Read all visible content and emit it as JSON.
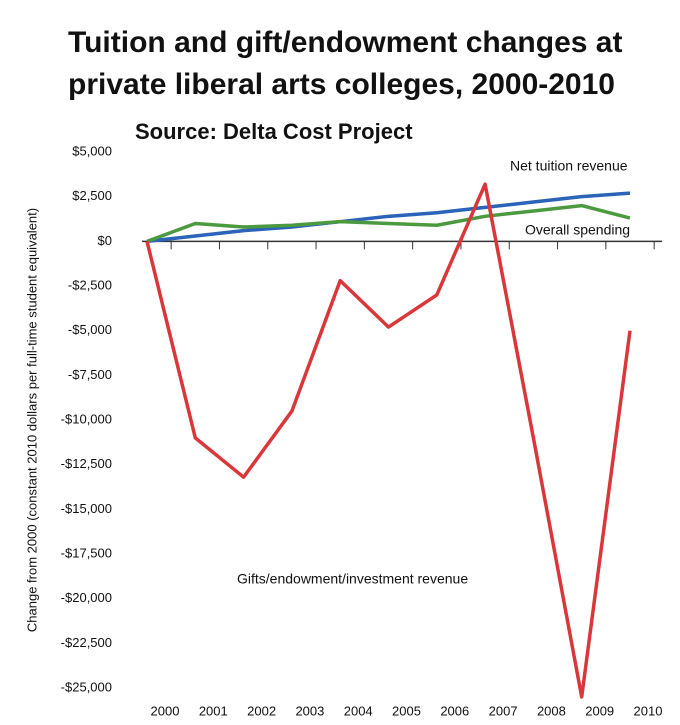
{
  "chart_data": {
    "type": "line",
    "title": "Tuition and gift/endowment changes at",
    "title_line2": "private liberal arts colleges, 2000-2010",
    "subtitle": "Source: Delta Cost Project",
    "ylabel": "Change from 2000 (constant 2010 dollars per full-time student equivalent)",
    "categories": [
      "2000",
      "2001",
      "2002",
      "2003",
      "2004",
      "2005",
      "2006",
      "2007",
      "2008",
      "2009",
      "2010"
    ],
    "series": [
      {
        "name": "Net tuition revenue",
        "color": "#2a63b8",
        "values": [
          0,
          300,
          600,
          800,
          1100,
          1400,
          1600,
          1900,
          2200,
          2500,
          2700
        ]
      },
      {
        "name": "Overall spending",
        "color": "#4c9a3f",
        "values": [
          0,
          1000,
          800,
          900,
          1100,
          1000,
          900,
          1400,
          1700,
          2000,
          1300
        ]
      },
      {
        "name": "Gifts/endowment/investment revenue",
        "color": "#d9373a",
        "values": [
          0,
          -11000,
          -13200,
          -9500,
          -2200,
          -4800,
          -3000,
          3200,
          -11000,
          -25500,
          -5000
        ]
      }
    ],
    "ylim": [
      -25000,
      5000
    ],
    "yticks": [
      {
        "value": 5000,
        "label": "$5,000"
      },
      {
        "value": 2500,
        "label": "$2,500"
      },
      {
        "value": 0,
        "label": "$0"
      },
      {
        "value": -2500,
        "label": "-$2,500"
      },
      {
        "value": -5000,
        "label": "-$5,000"
      },
      {
        "value": -7500,
        "label": "-$7,500"
      },
      {
        "value": -10000,
        "label": "-$10,000"
      },
      {
        "value": -12500,
        "label": "-$12,500"
      },
      {
        "value": -15000,
        "label": "-$15,000"
      },
      {
        "value": -17500,
        "label": "-$17,500"
      },
      {
        "value": -20000,
        "label": "-$20,000"
      },
      {
        "value": -22500,
        "label": "-$22,500"
      },
      {
        "value": -25000,
        "label": "-$25,000"
      }
    ],
    "grid": false
  }
}
